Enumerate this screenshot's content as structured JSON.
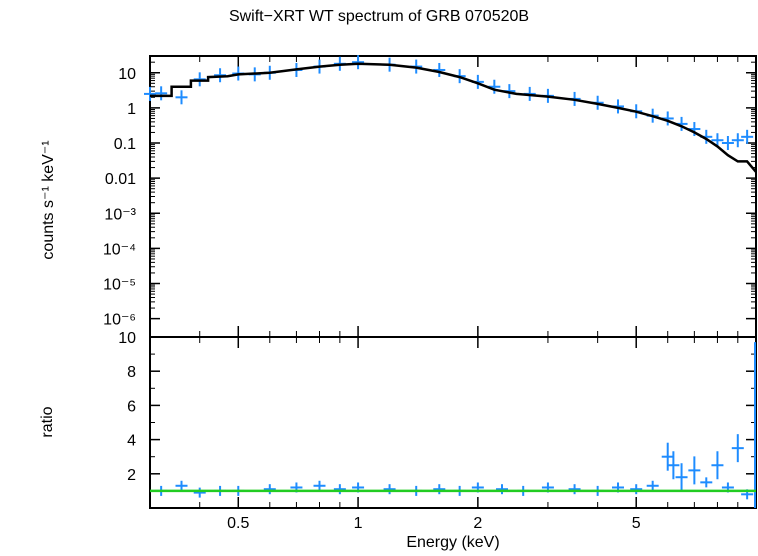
{
  "title": "Swift−XRT WT spectrum of GRB 070520B",
  "xlabel": "Energy (keV)",
  "ylabel_top": "counts s⁻¹ keV⁻¹",
  "ylabel_bottom": "ratio",
  "colors": {
    "data": "#1e8cff",
    "model": "#000000",
    "ratio_line": "#22cc22",
    "axes": "#000000"
  },
  "chart_data": [
    {
      "type": "line",
      "panel": "spectrum",
      "xscale": "log",
      "yscale": "log",
      "xlim": [
        0.3,
        10
      ],
      "ylim": [
        3e-07,
        30
      ],
      "ytick_labels": [
        "10",
        "1",
        "0.1",
        "0.01",
        "10⁻³",
        "10⁻⁴",
        "10⁻⁵",
        "10⁻⁶"
      ],
      "ytick_values": [
        10,
        1,
        0.1,
        0.01,
        0.001,
        0.0001,
        1e-05,
        1e-06
      ],
      "series": [
        {
          "kind": "data",
          "x": [
            0.3,
            0.32,
            0.36,
            0.4,
            0.45,
            0.5,
            0.55,
            0.6,
            0.7,
            0.8,
            0.9,
            1.0,
            1.2,
            1.4,
            1.6,
            1.8,
            2.0,
            2.2,
            2.4,
            2.7,
            3.0,
            3.5,
            4.0,
            4.5,
            5.0,
            5.5,
            6.0,
            6.5,
            7.0,
            7.5,
            8.0,
            8.5,
            9.0,
            9.5
          ],
          "y": [
            2.5,
            2.6,
            2.0,
            6.5,
            8.5,
            9.5,
            9.0,
            10.0,
            12.0,
            15.0,
            18.0,
            20.0,
            17.0,
            15.0,
            12.0,
            8.0,
            5.5,
            4.0,
            3.0,
            2.5,
            2.2,
            1.8,
            1.4,
            1.1,
            0.8,
            0.6,
            0.5,
            0.35,
            0.25,
            0.15,
            0.12,
            0.1,
            0.12,
            0.15
          ]
        },
        {
          "kind": "model",
          "x": [
            0.3,
            0.34,
            0.34,
            0.38,
            0.38,
            0.42,
            0.42,
            0.47,
            0.5,
            0.6,
            0.7,
            0.8,
            0.9,
            1.0,
            1.2,
            1.4,
            1.6,
            1.8,
            2.0,
            2.2,
            2.5,
            3.0,
            3.5,
            4.0,
            4.5,
            5.0,
            5.5,
            6.0,
            6.5,
            7.0,
            7.5,
            8.0,
            8.5,
            9.0,
            9.5,
            10.0
          ],
          "y": [
            2.2,
            2.2,
            4.0,
            4.0,
            6.0,
            6.0,
            7.5,
            8.0,
            9.0,
            10.0,
            12.5,
            15.0,
            17.0,
            18.0,
            17.0,
            14.0,
            10.5,
            7.5,
            5.0,
            3.3,
            2.5,
            2.1,
            1.7,
            1.3,
            1.0,
            0.78,
            0.58,
            0.43,
            0.3,
            0.2,
            0.13,
            0.08,
            0.045,
            0.03,
            0.03,
            0.015
          ]
        }
      ]
    },
    {
      "type": "line",
      "panel": "ratio",
      "xscale": "log",
      "yscale": "linear",
      "xlim": [
        0.3,
        10
      ],
      "ylim": [
        0,
        10
      ],
      "xtick_labels": [
        "0.5",
        "1",
        "2",
        "5"
      ],
      "xtick_values": [
        0.5,
        1,
        2,
        5
      ],
      "ytick_labels": [
        "10",
        "8",
        "6",
        "4",
        "2"
      ],
      "ytick_values": [
        10,
        8,
        6,
        4,
        2
      ],
      "series": [
        {
          "kind": "data",
          "x": [
            0.32,
            0.36,
            0.4,
            0.45,
            0.5,
            0.6,
            0.7,
            0.8,
            0.9,
            1.0,
            1.2,
            1.4,
            1.6,
            1.8,
            2.0,
            2.3,
            2.6,
            3.0,
            3.5,
            4.0,
            4.5,
            5.0,
            5.5,
            6.0,
            6.2,
            6.5,
            7.0,
            7.5,
            8.0,
            8.5,
            9.0,
            9.5
          ],
          "y": [
            1.0,
            1.3,
            0.9,
            1.0,
            1.0,
            1.1,
            1.2,
            1.3,
            1.1,
            1.2,
            1.1,
            1.0,
            1.1,
            1.0,
            1.2,
            1.1,
            1.0,
            1.2,
            1.1,
            1.0,
            1.2,
            1.1,
            1.3,
            3.0,
            2.5,
            1.8,
            2.2,
            1.5,
            2.5,
            1.2,
            3.5,
            0.8
          ]
        },
        {
          "kind": "unity",
          "x": [
            0.3,
            10
          ],
          "y": [
            1,
            1
          ]
        }
      ]
    }
  ]
}
